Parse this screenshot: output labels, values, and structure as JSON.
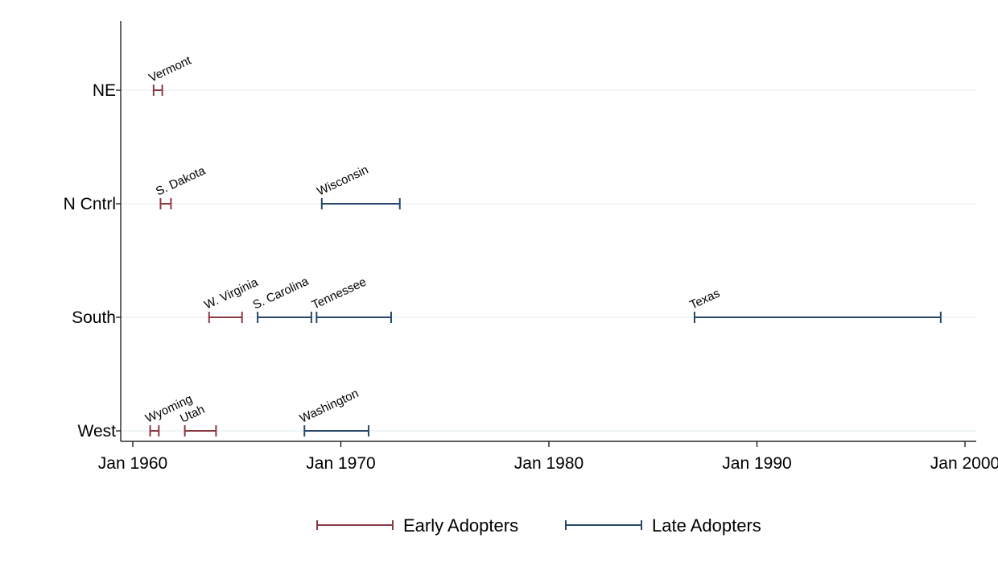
{
  "chart_data": {
    "type": "range",
    "xlabel": "",
    "ylabel": "",
    "categories": [
      "NE",
      "N Cntrl",
      "South",
      "West"
    ],
    "x_ticks": [
      "Jan 1960",
      "Jan 1970",
      "Jan 1980",
      "Jan 1990",
      "Jan 2000"
    ],
    "xlim": [
      "1959-08",
      "2000-04"
    ],
    "grid": true,
    "legend_position": "bottom",
    "series": [
      {
        "name": "Early Adopters",
        "color": "#8b3a44",
        "ranges": [
          {
            "label": "Vermont",
            "category": "NE",
            "start": "1961-01",
            "end": "1961-06"
          },
          {
            "label": "S. Dakota",
            "category": "N Cntrl",
            "start": "1961-05",
            "end": "1961-11"
          },
          {
            "label": "W. Virginia",
            "category": "South",
            "start": "1963-09",
            "end": "1965-04"
          },
          {
            "label": "Wyoming",
            "category": "West",
            "start": "1960-11",
            "end": "1961-04"
          },
          {
            "label": "Utah",
            "category": "West",
            "start": "1962-07",
            "end": "1964-01"
          }
        ]
      },
      {
        "name": "Late Adopters",
        "color": "#27486a",
        "ranges": [
          {
            "label": "Wisconsin",
            "category": "N Cntrl",
            "start": "1969-02",
            "end": "1972-11"
          },
          {
            "label": "S. Carolina",
            "category": "South",
            "start": "1966-01",
            "end": "1968-08"
          },
          {
            "label": "Tennessee",
            "category": "South",
            "start": "1968-11",
            "end": "1972-06"
          },
          {
            "label": "Texas",
            "category": "South",
            "start": "1987-01",
            "end": "1998-11"
          },
          {
            "label": "Washington",
            "category": "West",
            "start": "1968-04",
            "end": "1971-05"
          }
        ]
      }
    ]
  }
}
